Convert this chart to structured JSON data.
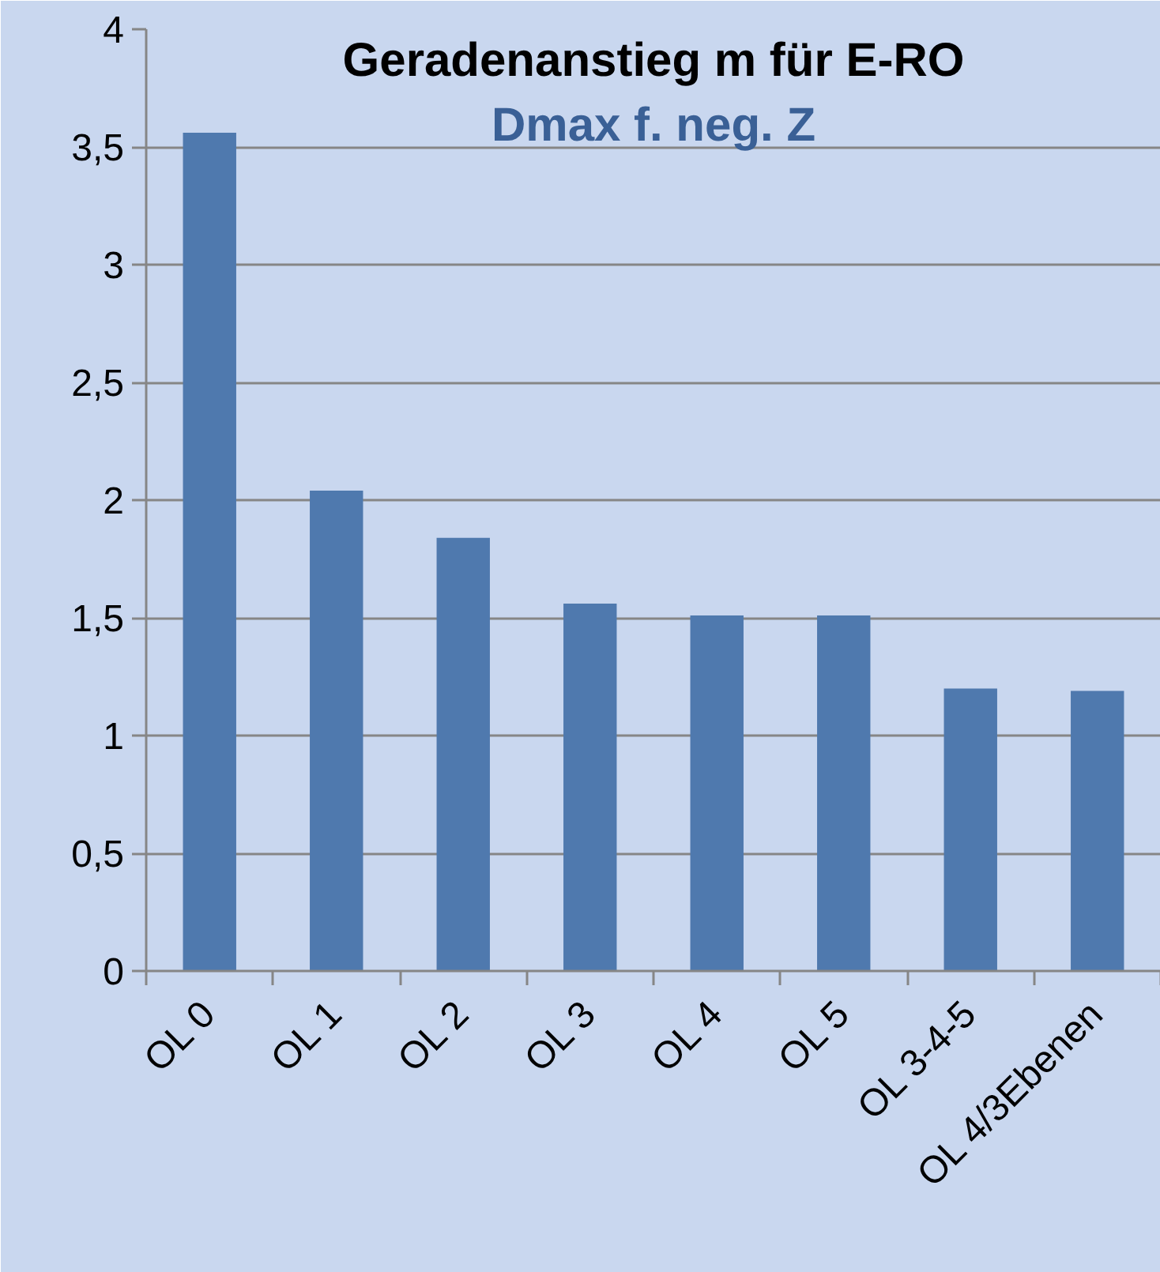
{
  "chart_data": {
    "type": "bar",
    "title": "Geradenanstieg m für E-RO",
    "subtitle": "Dmax f. neg. Z",
    "categories": [
      "OL 0",
      "OL 1",
      "OL 2",
      "OL 3",
      "OL 4",
      "OL 5",
      "OL 3-4-5",
      "OL 4/3Ebenen"
    ],
    "values": [
      3.56,
      2.04,
      1.84,
      1.56,
      1.51,
      1.51,
      1.2,
      1.19
    ],
    "color": "#4f79ae",
    "ylim": [
      0,
      4
    ],
    "yticks": [
      0,
      {
        "value": 0.5,
        "label": "0,5"
      },
      1,
      {
        "value": 1.5,
        "label": "1,5"
      },
      2,
      {
        "value": 2.5,
        "label": "2,5"
      },
      3,
      {
        "value": 3.5,
        "label": "3,5"
      },
      4
    ],
    "grid": "y"
  }
}
